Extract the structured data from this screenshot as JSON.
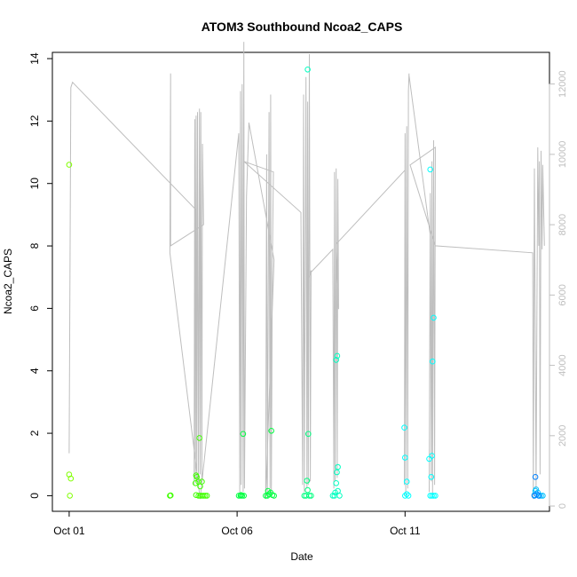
{
  "chart_data": {
    "type": "scatter",
    "title": "ATOM3 Southbound Ncoa2_CAPS",
    "xlabel": "Date",
    "ylabel": "Ncoa2_CAPS",
    "x_ticks": [
      "Oct 01",
      "Oct 06",
      "Oct 11"
    ],
    "x_tick_days": [
      1,
      6,
      11
    ],
    "xlim_days": [
      0.5,
      15.3
    ],
    "ylim": [
      -0.5,
      14.2
    ],
    "y_ticks": [
      0,
      2,
      4,
      6,
      8,
      10,
      12,
      14
    ],
    "y2lim": [
      -150,
      12900
    ],
    "y2_ticks": [
      0,
      2000,
      4000,
      6000,
      8000,
      10000,
      12000
    ],
    "grid": false,
    "legend": "none",
    "colors": {
      "axis": "#000000",
      "secondary_axis": "#bebebe",
      "secondary_line": "#bebebe",
      "frame": "#000000"
    },
    "point_colors": {
      "early": "#80ff00",
      "lime": "#40ff00",
      "green": "#00ff40",
      "spring": "#00ff80",
      "aqua": "#00ffc0",
      "cyan": "#00ffff",
      "sky": "#00c0ff",
      "azure": "#0080ff"
    },
    "point_series": [
      {
        "color_key": "early",
        "points": [
          [
            1.0,
            10.6
          ],
          [
            1.0,
            0.68
          ],
          [
            1.05,
            0.55
          ],
          [
            1.02,
            0.0
          ]
        ]
      },
      {
        "color_key": "lime",
        "points": [
          [
            4.0,
            0.0
          ],
          [
            4.02,
            0.01
          ],
          [
            4.78,
            0.65
          ],
          [
            4.8,
            0.6
          ],
          [
            4.76,
            0.4
          ],
          [
            4.85,
            0.45
          ],
          [
            4.9,
            0.3
          ],
          [
            4.88,
            1.85
          ],
          [
            4.95,
            0.45
          ],
          [
            4.78,
            0.02
          ],
          [
            4.85,
            0.0
          ],
          [
            4.9,
            0.0
          ],
          [
            4.95,
            0.0
          ],
          [
            5.0,
            0.0
          ],
          [
            5.05,
            0.0
          ],
          [
            5.1,
            0.0
          ]
        ]
      },
      {
        "color_key": "green",
        "points": [
          [
            6.05,
            0.0
          ],
          [
            6.1,
            0.0
          ],
          [
            6.12,
            0.02
          ],
          [
            6.15,
            0.0
          ],
          [
            6.18,
            1.98
          ],
          [
            6.2,
            0.0
          ],
          [
            6.85,
            0.0
          ],
          [
            6.9,
            0.0
          ],
          [
            6.92,
            0.15
          ],
          [
            6.95,
            0.05
          ],
          [
            7.0,
            0.1
          ],
          [
            7.02,
            2.08
          ],
          [
            7.05,
            0.02
          ],
          [
            7.1,
            0.0
          ]
        ]
      },
      {
        "color_key": "spring",
        "points": [
          [
            8.0,
            0.0
          ],
          [
            8.05,
            0.0
          ],
          [
            8.08,
            0.48
          ],
          [
            8.1,
            0.18
          ],
          [
            8.12,
            1.98
          ],
          [
            8.15,
            0.0
          ],
          [
            8.2,
            0.0
          ]
        ]
      },
      {
        "color_key": "aqua",
        "points": [
          [
            8.1,
            13.65
          ],
          [
            8.85,
            0.0
          ],
          [
            8.9,
            0.0
          ],
          [
            8.92,
            0.1
          ],
          [
            8.95,
            4.35
          ],
          [
            8.98,
            4.48
          ],
          [
            9.0,
            0.92
          ],
          [
            8.97,
            0.75
          ],
          [
            8.95,
            0.4
          ],
          [
            9.0,
            0.15
          ],
          [
            9.05,
            0.0
          ]
        ]
      },
      {
        "color_key": "cyan",
        "points": [
          [
            10.98,
            2.18
          ],
          [
            11.0,
            1.22
          ],
          [
            11.05,
            0.45
          ],
          [
            11.0,
            0.0
          ],
          [
            11.05,
            0.05
          ],
          [
            11.1,
            0.0
          ],
          [
            11.75,
            10.45
          ],
          [
            11.72,
            1.18
          ],
          [
            11.8,
            1.28
          ],
          [
            11.78,
            0.6
          ],
          [
            11.85,
            5.7
          ],
          [
            11.82,
            4.3
          ],
          [
            11.75,
            0.0
          ],
          [
            11.8,
            0.0
          ],
          [
            11.85,
            0.0
          ],
          [
            11.9,
            0.0
          ]
        ]
      },
      {
        "color_key": "sky",
        "points": [
          [
            14.85,
            0.02
          ],
          [
            14.88,
            0.15
          ],
          [
            14.9,
            0.2
          ],
          [
            14.95,
            0.1
          ],
          [
            15.0,
            0.0
          ],
          [
            15.05,
            0.0
          ],
          [
            15.1,
            0.0
          ]
        ]
      },
      {
        "color_key": "azure",
        "points": [
          [
            14.88,
            0.6
          ],
          [
            14.85,
            0.0
          ],
          [
            14.92,
            0.05
          ],
          [
            14.98,
            0.0
          ]
        ]
      }
    ],
    "secondary_line": [
      [
        1.0,
        1500
      ],
      [
        1.05,
        11900
      ],
      [
        1.1,
        12050
      ],
      [
        4.75,
        8450
      ],
      [
        4.72,
        600
      ],
      [
        4.74,
        11000
      ],
      [
        4.76,
        800
      ],
      [
        4.78,
        11100
      ],
      [
        4.8,
        700
      ],
      [
        4.82,
        11200
      ],
      [
        4.85,
        500
      ],
      [
        4.88,
        11300
      ],
      [
        4.9,
        900
      ],
      [
        4.92,
        11200
      ],
      [
        4.95,
        700
      ],
      [
        4.97,
        10300
      ],
      [
        5.0,
        8000
      ],
      [
        4.02,
        7400
      ],
      [
        4.02,
        12300
      ],
      [
        4.0,
        7200
      ],
      [
        4.9,
        200
      ],
      [
        6.05,
        10600
      ],
      [
        6.08,
        300
      ],
      [
        6.1,
        11800
      ],
      [
        6.12,
        600
      ],
      [
        6.15,
        12000
      ],
      [
        6.18,
        400
      ],
      [
        6.2,
        13200
      ],
      [
        6.22,
        500
      ],
      [
        6.28,
        8800
      ],
      [
        6.35,
        10900
      ],
      [
        7.1,
        7000
      ],
      [
        6.85,
        200
      ],
      [
        6.88,
        10000
      ],
      [
        6.9,
        400
      ],
      [
        6.95,
        11200
      ],
      [
        6.98,
        500
      ],
      [
        7.0,
        11700
      ],
      [
        7.02,
        300
      ],
      [
        7.05,
        6900
      ],
      [
        7.08,
        9500
      ],
      [
        6.2,
        9800
      ],
      [
        7.9,
        8350
      ],
      [
        7.95,
        600
      ],
      [
        7.98,
        11700
      ],
      [
        8.0,
        400
      ],
      [
        8.05,
        12200
      ],
      [
        8.08,
        500
      ],
      [
        8.1,
        11500
      ],
      [
        8.12,
        600
      ],
      [
        8.15,
        12850
      ],
      [
        8.18,
        700
      ],
      [
        8.2,
        6700
      ],
      [
        8.15,
        6500
      ],
      [
        8.2,
        6650
      ],
      [
        8.85,
        7300
      ],
      [
        8.88,
        500
      ],
      [
        8.9,
        9500
      ],
      [
        8.92,
        700
      ],
      [
        8.95,
        9600
      ],
      [
        8.98,
        800
      ],
      [
        9.0,
        9300
      ],
      [
        9.02,
        5600
      ],
      [
        8.95,
        7450
      ],
      [
        11.0,
        9550
      ],
      [
        10.98,
        600
      ],
      [
        11.0,
        10600
      ],
      [
        11.02,
        300
      ],
      [
        11.05,
        10800
      ],
      [
        11.08,
        500
      ],
      [
        11.1,
        11800
      ],
      [
        11.12,
        12300
      ],
      [
        11.12,
        12250
      ],
      [
        11.75,
        7700
      ],
      [
        11.72,
        400
      ],
      [
        11.75,
        8900
      ],
      [
        11.78,
        700
      ],
      [
        11.8,
        9800
      ],
      [
        11.82,
        300
      ],
      [
        11.85,
        10400
      ],
      [
        11.88,
        600
      ],
      [
        11.9,
        10200
      ],
      [
        11.15,
        9700
      ],
      [
        11.9,
        7400
      ],
      [
        14.8,
        7200
      ],
      [
        14.82,
        200
      ],
      [
        14.85,
        9600
      ],
      [
        14.9,
        500
      ],
      [
        14.95,
        10200
      ],
      [
        14.98,
        7400
      ],
      [
        15.0,
        9800
      ],
      [
        15.02,
        900
      ],
      [
        15.05,
        10100
      ],
      [
        15.08,
        7300
      ],
      [
        15.1,
        9700
      ],
      [
        15.15,
        7400
      ]
    ]
  }
}
